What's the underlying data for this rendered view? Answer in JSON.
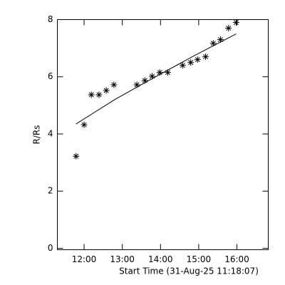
{
  "chart_data": {
    "type": "scatter",
    "xlabel": "Start Time (31-Aug-25 11:18:07)",
    "ylabel": "R/Rs",
    "color": "#000000",
    "series": [
      {
        "marker": "asterisk",
        "x": [
          11.79,
          12.0,
          12.19,
          12.39,
          12.58,
          12.78,
          13.38,
          13.59,
          13.78,
          13.98,
          14.19,
          14.58,
          14.79,
          14.97,
          15.18,
          15.38,
          15.57,
          15.78,
          15.98
        ],
        "values": [
          3.22,
          4.32,
          5.37,
          5.37,
          5.52,
          5.72,
          5.72,
          5.87,
          6.02,
          6.15,
          6.15,
          6.4,
          6.5,
          6.6,
          6.7,
          7.17,
          7.3,
          7.7,
          7.9
        ]
      },
      {
        "marker": "line",
        "x": [
          11.79,
          12.8,
          13.8,
          14.9,
          15.98
        ],
        "values": [
          4.35,
          5.2,
          5.95,
          6.75,
          7.5
        ]
      }
    ],
    "xlim": [
      11.3,
      16.82
    ],
    "ylim": [
      -0.05,
      8
    ],
    "xticks": [
      {
        "value": 12,
        "label": "12:00"
      },
      {
        "value": 13,
        "label": "13:00"
      },
      {
        "value": 14,
        "label": "14:00"
      },
      {
        "value": 15,
        "label": "15:00"
      },
      {
        "value": 16,
        "label": "16:00"
      }
    ],
    "yticks": [
      0,
      2,
      4,
      6,
      8
    ]
  }
}
